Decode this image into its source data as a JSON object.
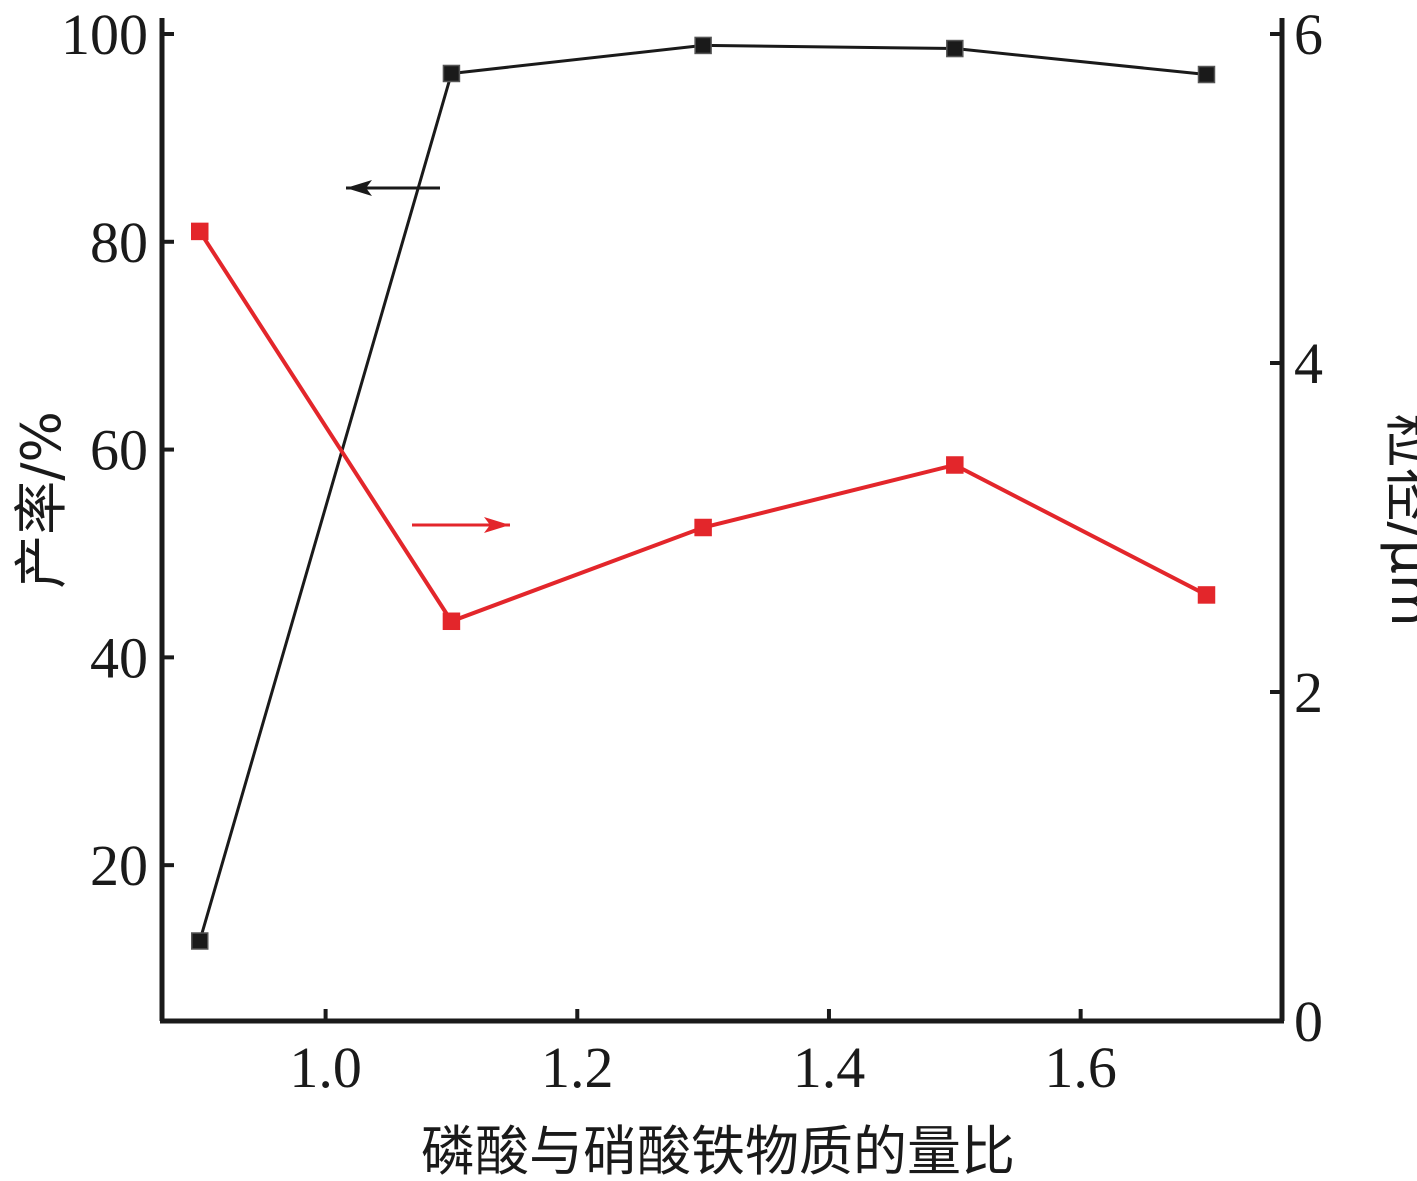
{
  "chart_data": {
    "type": "line",
    "xlabel": "磷酸与硝酸铁物质的量比",
    "ylabel_left": "产率/%",
    "ylabel_right": "粒径/μm",
    "xlim": [
      0.87,
      1.76
    ],
    "ylim_left": [
      5,
      100
    ],
    "ylim_right": [
      0,
      6
    ],
    "x_ticks": [
      "1.0",
      "1.2",
      "1.4",
      "1.6"
    ],
    "y_left_ticks": [
      "20",
      "40",
      "60",
      "80",
      "100"
    ],
    "y_right_ticks": [
      "0",
      "2",
      "4",
      "6"
    ],
    "grid": false,
    "series": [
      {
        "axis": "left",
        "color": "#1a1a1a",
        "marker": "square",
        "x": [
          0.9,
          1.1,
          1.3,
          1.5,
          1.7
        ],
        "y": [
          12.7,
          96.2,
          98.9,
          98.6,
          96.1
        ]
      },
      {
        "axis": "right",
        "color": "#e3262b",
        "marker": "square",
        "x": [
          0.9,
          1.1,
          1.3,
          1.5,
          1.7
        ],
        "y": [
          4.8,
          2.43,
          3.0,
          3.38,
          2.59
        ]
      }
    ],
    "annotations": [
      {
        "type": "arrow",
        "direction": "left",
        "points_to": "left-axis",
        "color": "#1a1a1a"
      },
      {
        "type": "arrow",
        "direction": "right",
        "points_to": "right-axis",
        "color": "#e3262b"
      }
    ]
  }
}
